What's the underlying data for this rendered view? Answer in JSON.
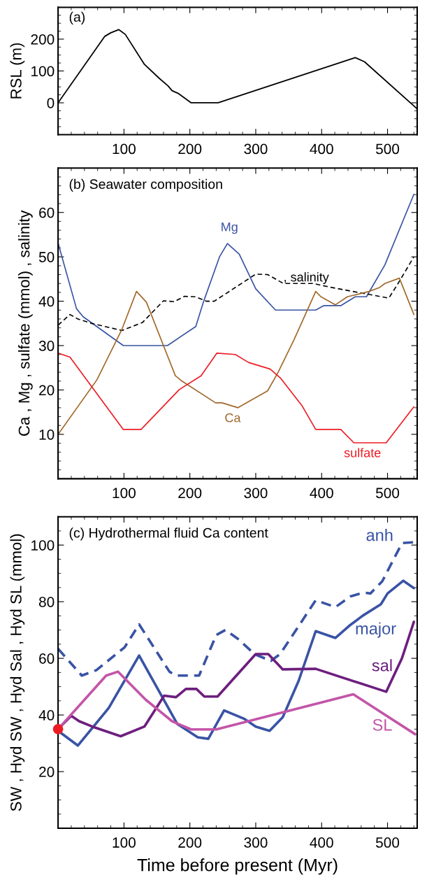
{
  "chart_data": [
    {
      "type": "line",
      "title": "(a)",
      "ylabel": "RSL (m)",
      "xlim": [
        0,
        545
      ],
      "ylim": [
        -100,
        300
      ],
      "xticks": [
        100,
        200,
        300,
        400,
        500
      ],
      "yticks": [
        0,
        100,
        200
      ],
      "grid": false,
      "legend": false,
      "series": [
        {
          "color": "#000000",
          "x": [
            0,
            71,
            80,
            92,
            102,
            131,
            153,
            167,
            173,
            182,
            202,
            243,
            451,
            465,
            545
          ],
          "values": [
            0,
            209,
            220,
            230,
            215,
            121,
            78,
            53,
            38,
            30,
            0,
            0,
            142,
            129,
            -19
          ]
        }
      ]
    },
    {
      "type": "line",
      "title": "(b) Seawater composition",
      "ylabel": "Ca , Mg , sulfate (mmol) , salinity",
      "xlim": [
        0,
        545
      ],
      "ylim": [
        0,
        70
      ],
      "xticks": [
        100,
        200,
        300,
        400,
        500
      ],
      "yticks": [
        10,
        20,
        30,
        40,
        50,
        60
      ],
      "grid": false,
      "legend": false,
      "series": [
        {
          "name": "Mg",
          "color": "#3953a4",
          "x": [
            0,
            28,
            38,
            99,
            166,
            209,
            221,
            245,
            257,
            275,
            300,
            330,
            391,
            403,
            429,
            451,
            468,
            496,
            540
          ],
          "values": [
            53.1,
            38.3,
            36.5,
            30,
            30,
            34.3,
            40,
            50,
            53,
            50.6,
            42.8,
            38,
            38,
            39,
            39,
            41,
            41,
            48.2,
            64.1
          ]
        },
        {
          "name": ", salinity",
          "color": "#000000",
          "line_style": "dashed",
          "x": [
            0,
            18,
            30,
            51,
            97,
            128,
            160,
            176,
            192,
            209,
            225,
            237,
            300,
            318,
            342,
            387,
            415,
            502,
            516,
            540
          ],
          "values": [
            34.6,
            37,
            36,
            35,
            33.4,
            35.2,
            40.1,
            39.9,
            41.1,
            41,
            40,
            40,
            46.1,
            46,
            44,
            44,
            43.1,
            40.7,
            44,
            50
          ]
        },
        {
          "name": "Ca",
          "color": "#a0692a",
          "x": [
            0,
            59,
            97,
            119,
            134,
            178,
            188,
            239,
            249,
            273,
            318,
            334,
            358,
            391,
            399,
            421,
            439,
            472,
            488,
            496,
            518,
            540
          ],
          "values": [
            10,
            22.3,
            33.7,
            42.2,
            39.8,
            23.2,
            22,
            17.1,
            17.1,
            16,
            19.8,
            24,
            31.3,
            42.2,
            41,
            39.2,
            41,
            42.2,
            43.1,
            44,
            45.2,
            37
          ]
        },
        {
          "name": "sulfate",
          "color": "#ed1c24",
          "x": [
            0,
            18,
            99,
            126,
            184,
            217,
            241,
            269,
            289,
            322,
            338,
            370,
            391,
            429,
            449,
            498,
            540
          ],
          "values": [
            28.3,
            27.4,
            11.1,
            11.1,
            20.1,
            23.2,
            28.3,
            28,
            26.2,
            24.7,
            22.6,
            16.5,
            11.1,
            11.1,
            8.1,
            8.1,
            16.2
          ]
        }
      ]
    },
    {
      "type": "line",
      "title": "(c) Hydrothermal fluid Ca content",
      "xlabel": "Time before present (Myr)",
      "ylabel": "SW , Hyd SW , Hyd Sal , Hyd SL (mmol)",
      "xlim": [
        0,
        545
      ],
      "ylim": [
        0,
        110
      ],
      "xticks": [
        100,
        200,
        300,
        400,
        500
      ],
      "yticks": [
        20,
        40,
        60,
        80,
        100
      ],
      "grid": false,
      "legend": false,
      "series": [
        {
          "name": "anh",
          "color": "#3953a4",
          "line_style": "dashed",
          "x": [
            0,
            36,
            58,
            101,
            123,
            169,
            179,
            214,
            240,
            254,
            274,
            298,
            323,
            337,
            391,
            421,
            444,
            464,
            474,
            492,
            522,
            540
          ],
          "values": [
            63.4,
            53.9,
            55.8,
            63.9,
            72,
            55.3,
            53.9,
            53.9,
            68.2,
            70,
            66.7,
            61.5,
            59.1,
            61.5,
            80.5,
            78.1,
            81.9,
            83.2,
            82.9,
            87.2,
            100.7,
            101
          ]
        },
        {
          "name": "major",
          "color": "#3953a4",
          "x": [
            0,
            30,
            77,
            123,
            181,
            212,
            228,
            252,
            282,
            300,
            321,
            341,
            365,
            391,
            421,
            442,
            462,
            490,
            500,
            524,
            540
          ],
          "values": [
            34.4,
            29.2,
            42.5,
            61,
            36.8,
            32.1,
            31.6,
            41.6,
            38.7,
            35.9,
            34.4,
            39.2,
            52,
            69.6,
            67.2,
            71.5,
            75,
            79.1,
            82.9,
            87.4,
            84.8
          ]
        },
        {
          "name": "sal",
          "color": "#6d1f7e",
          "x": [
            0,
            20,
            32,
            52,
            95,
            131,
            161,
            179,
            194,
            210,
            222,
            242,
            300,
            319,
            341,
            391,
            498,
            522,
            540
          ],
          "values": [
            35,
            39.7,
            37.8,
            35.9,
            32.5,
            35.9,
            46.8,
            46.3,
            49.2,
            49.2,
            46.5,
            46.5,
            61.5,
            61.5,
            56.1,
            56.3,
            48.2,
            60.1,
            72.9
          ]
        },
        {
          "name": "SL",
          "color": "#c355a8",
          "x": [
            0,
            73,
            91,
            133,
            173,
            202,
            240,
            448,
            542
          ],
          "values": [
            35,
            53.9,
            55.3,
            45.4,
            37.8,
            34.9,
            34.9,
            47.3,
            33.2
          ]
        },
        {
          "type": "scatter",
          "color": "#ed1c24",
          "x": [
            0
          ],
          "values": [
            35
          ]
        }
      ]
    }
  ]
}
